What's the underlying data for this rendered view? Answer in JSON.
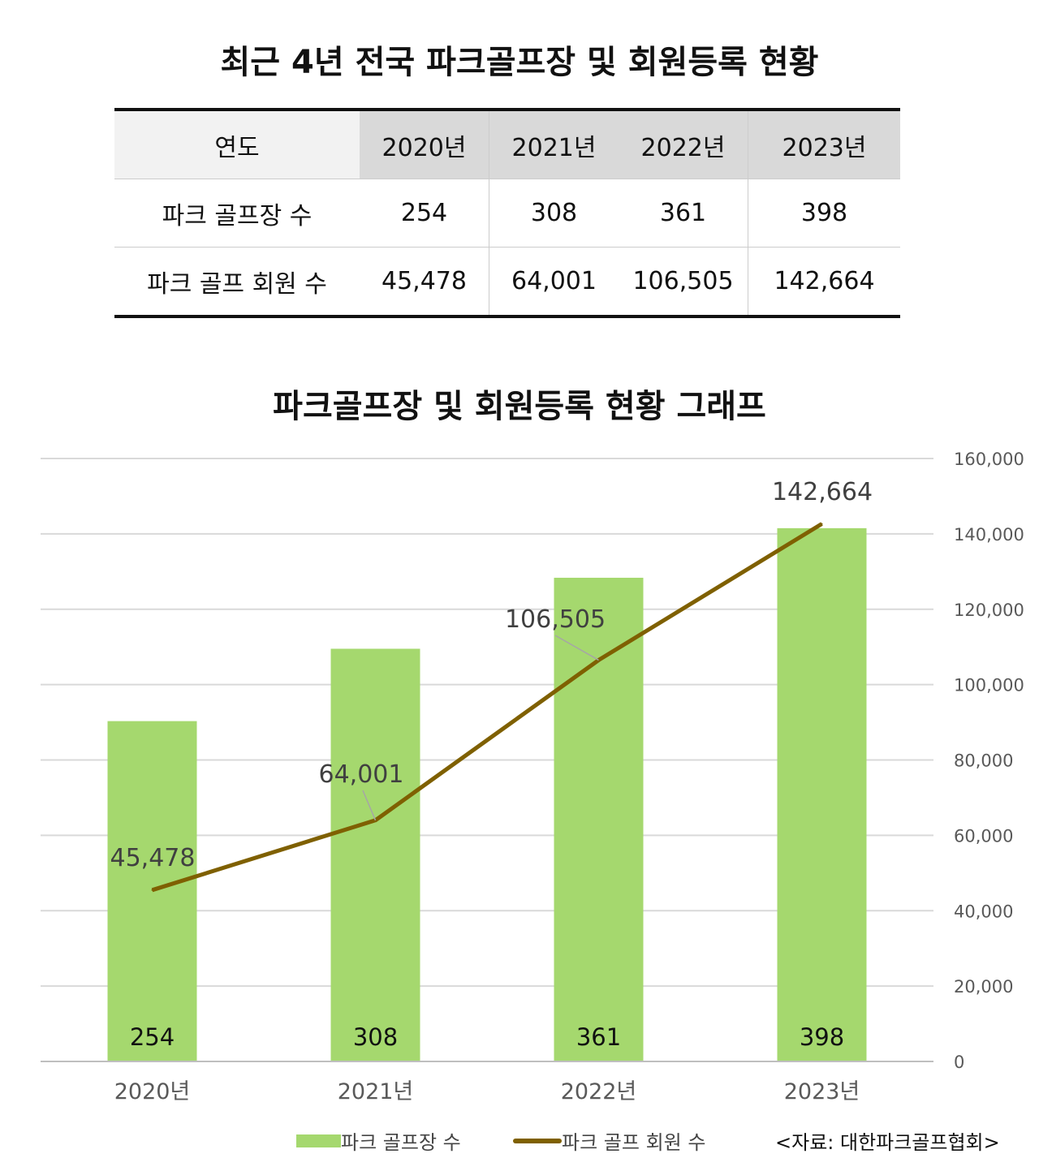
{
  "title": "최근 4년 전국 파크골프장 및 회원등록 현황",
  "table": {
    "header": [
      "연도",
      "2020년",
      "2021년",
      "2022년",
      "2023년"
    ],
    "rows": [
      [
        "파크 골프장 수",
        "254",
        "308",
        "361",
        "398"
      ],
      [
        "파크 골프 회원 수",
        "45,478",
        "64,001",
        "106,505",
        "142,664"
      ]
    ]
  },
  "chart_data": {
    "type": "bar",
    "title": "파크골프장 및 회원등록 현황 그래프",
    "categories": [
      "2020년",
      "2021년",
      "2022년",
      "2023년"
    ],
    "series": [
      {
        "name": "파크 골프장 수",
        "type": "bar",
        "axis": "left-hidden",
        "values": [
          254,
          308,
          361,
          398
        ],
        "labels": [
          "254",
          "308",
          "361",
          "398"
        ],
        "color": "#a5d86e"
      },
      {
        "name": "파크 골프 회원 수",
        "type": "line",
        "axis": "right",
        "values": [
          45478,
          64001,
          106505,
          142664
        ],
        "labels": [
          "45,478",
          "64,001",
          "106,505",
          "142,664"
        ],
        "color": "#7f6000"
      }
    ],
    "y_left_range": [
      0,
      450
    ],
    "y_right_range": [
      0,
      160000
    ],
    "y_right_ticks": [
      "0",
      "20,000",
      "40,000",
      "60,000",
      "80,000",
      "100,000",
      "120,000",
      "140,000",
      "160,000"
    ],
    "grid": true,
    "legend": "bottom",
    "source": "<자료: 대한파크골프협회>"
  }
}
